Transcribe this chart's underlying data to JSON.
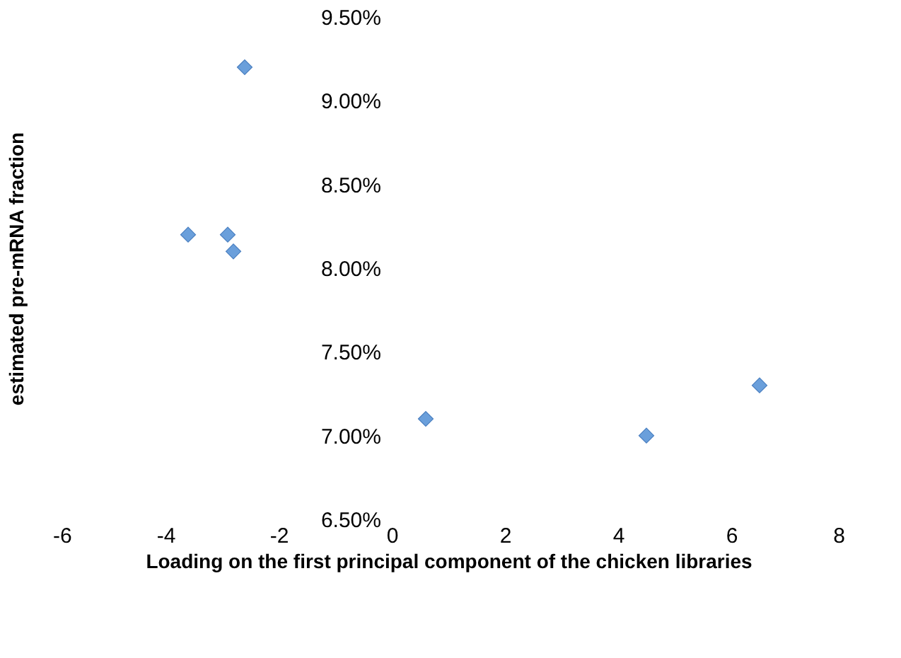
{
  "chart_data": {
    "type": "scatter",
    "xlabel": "Loading on the first principal component of the chicken libraries",
    "ylabel": "estimated pre-mRNA fraction",
    "x": [
      -2.6,
      -3.6,
      -2.9,
      -2.8,
      0.6,
      4.5,
      6.5
    ],
    "series": [
      {
        "color": "#6a9fdb",
        "values": [
          9.2,
          8.2,
          8.2,
          8.1,
          7.1,
          7.0,
          7.3
        ]
      }
    ],
    "marker": "diamond",
    "grid": false,
    "legend": false,
    "xlim": [
      -6,
      8
    ],
    "xticks": [
      -6,
      -4,
      -2,
      0,
      2,
      4,
      6,
      8
    ],
    "ylim": [
      6.5,
      9.5
    ],
    "yticks": [
      {
        "value": 6.5,
        "label": "6.50%"
      },
      {
        "value": 7.0,
        "label": "7.00%"
      },
      {
        "value": 7.5,
        "label": "7.50%"
      },
      {
        "value": 8.0,
        "label": "8.00%"
      },
      {
        "value": 8.5,
        "label": "8.50%"
      },
      {
        "value": 9.0,
        "label": "9.00%"
      },
      {
        "value": 9.5,
        "label": "9.50%"
      }
    ]
  }
}
